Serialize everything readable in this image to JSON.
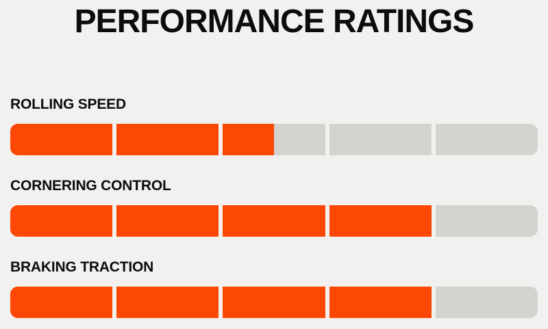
{
  "title": "PERFORMANCE RATINGS",
  "chart_data": {
    "type": "bar",
    "title": "PERFORMANCE RATINGS",
    "orientation": "horizontal",
    "categories": [
      "ROLLING SPEED",
      "CORNERING CONTROL",
      "BRAKING TRACTION"
    ],
    "values": [
      2.5,
      4,
      4
    ],
    "value_max": 5,
    "segments_per_bar": 5,
    "grid": false,
    "legend": "none"
  },
  "ratings": [
    {
      "label": "ROLLING SPEED",
      "value": 2.5,
      "max": 5
    },
    {
      "label": "CORNERING CONTROL",
      "value": 4,
      "max": 5
    },
    {
      "label": "BRAKING TRACTION",
      "value": 4,
      "max": 5
    }
  ],
  "colors": {
    "filled": "#fc4804",
    "empty": "#d5d3d0",
    "background": "#f2f1ef",
    "text": "#0c0c0c"
  }
}
